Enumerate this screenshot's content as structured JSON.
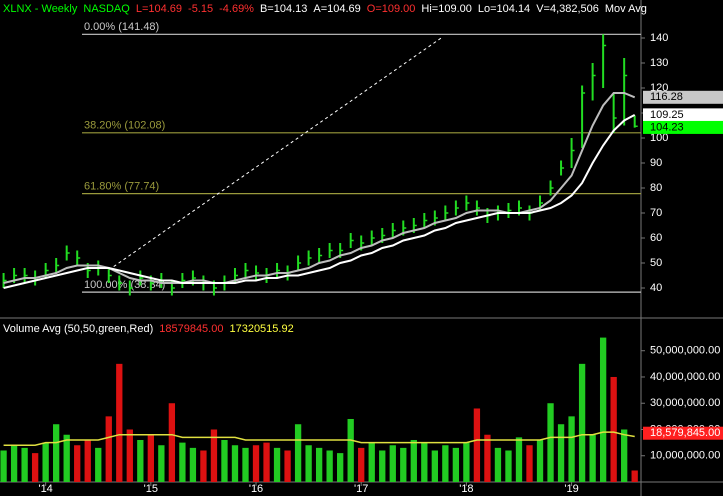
{
  "chart_data": [
    {
      "type": "ohlc",
      "header": [
        {
          "text": "XLNX - Weekly",
          "color": "#00ff00"
        },
        {
          "text": "NASDAQ",
          "color": "#00ff00"
        },
        {
          "text": "L=104.69",
          "color": "#ff3030"
        },
        {
          "text": "-5.15",
          "color": "#ff3030"
        },
        {
          "text": "-4.69%",
          "color": "#ff3030"
        },
        {
          "text": "B=104.13",
          "color": "#ffffff"
        },
        {
          "text": "A=104.69",
          "color": "#ffffff"
        },
        {
          "text": "O=109.00",
          "color": "#ff3030"
        },
        {
          "text": "Hi=109.00",
          "color": "#ffffff"
        },
        {
          "text": "Lo=104.14",
          "color": "#ffffff"
        },
        {
          "text": "V=4,382,506",
          "color": "#ffffff"
        },
        {
          "text": "Mov Avg",
          "color": "#ffffff"
        }
      ],
      "x": [
        2013.6,
        2013.7,
        2013.8,
        2013.9,
        2014.0,
        2014.1,
        2014.2,
        2014.3,
        2014.4,
        2014.5,
        2014.6,
        2014.7,
        2014.8,
        2014.9,
        2015.0,
        2015.1,
        2015.2,
        2015.3,
        2015.4,
        2015.5,
        2015.6,
        2015.7,
        2015.8,
        2015.9,
        2016.0,
        2016.1,
        2016.2,
        2016.3,
        2016.4,
        2016.5,
        2016.6,
        2016.7,
        2016.8,
        2016.9,
        2017.0,
        2017.1,
        2017.2,
        2017.3,
        2017.4,
        2017.5,
        2017.6,
        2017.7,
        2017.8,
        2017.9,
        2018.0,
        2018.1,
        2018.2,
        2018.3,
        2018.4,
        2018.5,
        2018.6,
        2018.7,
        2018.8,
        2018.9,
        2019.0,
        2019.1,
        2019.2,
        2019.3,
        2019.4,
        2019.5,
        2019.6
      ],
      "high": [
        46,
        48,
        48,
        47,
        50,
        52,
        57,
        55,
        50,
        51,
        48,
        45,
        43,
        47,
        45,
        46,
        43,
        46,
        47,
        45,
        43,
        45,
        48,
        50,
        49,
        48,
        50,
        49,
        53,
        55,
        56,
        58,
        58,
        62,
        61,
        63,
        64,
        66,
        67,
        68,
        70,
        71,
        73,
        75,
        77,
        75,
        72,
        73,
        74,
        75,
        73,
        77,
        83,
        91,
        100,
        121,
        130,
        141.48,
        118,
        132,
        109
      ],
      "low": [
        40,
        42,
        42,
        41,
        44,
        46,
        51,
        49,
        44,
        45,
        42,
        39,
        37,
        41,
        39,
        40,
        37,
        40,
        41,
        39,
        37,
        39,
        42,
        44,
        43,
        42,
        44,
        43,
        47,
        49,
        50,
        52,
        52,
        56,
        55,
        57,
        58,
        60,
        61,
        62,
        64,
        65,
        67,
        69,
        71,
        69,
        66,
        67,
        68,
        69,
        67,
        71,
        77,
        85,
        88,
        96,
        115,
        120,
        102,
        105,
        104.14
      ],
      "close": [
        43,
        45,
        45,
        44,
        47,
        49,
        54,
        52,
        47,
        48,
        45,
        42,
        40,
        44,
        42,
        43,
        40,
        43,
        44,
        42,
        40,
        42,
        45,
        47,
        46,
        45,
        47,
        46,
        50,
        52,
        53,
        55,
        55,
        59,
        58,
        60,
        61,
        63,
        64,
        65,
        67,
        68,
        70,
        72,
        74,
        72,
        69,
        70,
        71,
        72,
        70,
        74,
        80,
        88,
        95,
        118,
        125,
        137,
        108,
        125,
        104.69
      ],
      "color": "#22dd22",
      "series": [
        {
          "color": "#bdbdbd",
          "values": [
            42,
            43,
            44,
            44,
            45,
            46,
            48,
            49,
            49,
            49,
            48,
            46,
            44,
            43,
            43,
            42,
            42,
            42,
            43,
            43,
            42,
            42,
            43,
            44,
            45,
            45,
            46,
            46,
            47,
            48,
            50,
            51,
            53,
            54,
            56,
            57,
            59,
            60,
            62,
            63,
            64,
            66,
            67,
            68,
            70,
            71,
            71,
            71,
            70,
            70,
            71,
            72,
            75,
            80,
            85,
            95,
            105,
            113,
            118,
            118,
            116.28
          ]
        },
        {
          "color": "#ffffff",
          "values": [
            40,
            41,
            42,
            43,
            44,
            45,
            46,
            47,
            48,
            48,
            48,
            47,
            46,
            45,
            44,
            43,
            43,
            42,
            42,
            42,
            42,
            42,
            42,
            43,
            43,
            44,
            44,
            45,
            45,
            46,
            47,
            48,
            50,
            51,
            53,
            54,
            56,
            57,
            59,
            60,
            61,
            63,
            64,
            66,
            67,
            68,
            69,
            70,
            70,
            70,
            70,
            71,
            72,
            74,
            77,
            82,
            90,
            97,
            103,
            107,
            109.25
          ]
        }
      ],
      "fib_levels": [
        {
          "label": "0.00% (141.48)",
          "value": 141.48,
          "color": "#c8c8c8"
        },
        {
          "label": "38.20% (102.08)",
          "value": 102.08,
          "color": "#9a9a3c"
        },
        {
          "label": "61.80% (77.74)",
          "value": 77.74,
          "color": "#9a9a3c"
        },
        {
          "label": "100.00% (38.34)",
          "value": 38.34,
          "color": "#c8c8c8"
        }
      ],
      "trendline": {
        "x": [
          2014.6,
          2017.76
        ],
        "y": [
          47.2,
          140
        ],
        "color": "#ffffff",
        "dash": true
      },
      "value_tags": [
        {
          "value": 116.28,
          "color": "#c8c8c8"
        },
        {
          "value": 109.25,
          "color": "#ffffff"
        },
        {
          "value": 104.23,
          "color": "#00ff00"
        }
      ],
      "xlim": [
        2013.566,
        2019.66
      ],
      "ylim": [
        28,
        155.2
      ],
      "yticks": [
        40,
        50,
        60,
        70,
        80,
        90,
        100,
        110,
        120,
        130,
        140
      ]
    },
    {
      "type": "volume",
      "header": [
        {
          "text": "Volume Avg (50,50,green,Red)",
          "color": "#ffffff"
        },
        {
          "text": "18579845.00",
          "color": "#ff3030"
        },
        {
          "text": "17320515.92",
          "color": "#ffff40"
        }
      ],
      "x": [
        2013.6,
        2013.7,
        2013.8,
        2013.9,
        2014.0,
        2014.1,
        2014.2,
        2014.3,
        2014.4,
        2014.5,
        2014.6,
        2014.7,
        2014.8,
        2014.9,
        2015.0,
        2015.1,
        2015.2,
        2015.3,
        2015.4,
        2015.5,
        2015.6,
        2015.7,
        2015.8,
        2015.9,
        2016.0,
        2016.1,
        2016.2,
        2016.3,
        2016.4,
        2016.5,
        2016.6,
        2016.7,
        2016.8,
        2016.9,
        2017.0,
        2017.1,
        2017.2,
        2017.3,
        2017.4,
        2017.5,
        2017.6,
        2017.7,
        2017.8,
        2017.9,
        2018.0,
        2018.1,
        2018.2,
        2018.3,
        2018.4,
        2018.5,
        2018.6,
        2018.7,
        2018.8,
        2018.9,
        2019.0,
        2019.1,
        2019.2,
        2019.3,
        2019.4,
        2019.5,
        2019.6
      ],
      "values": [
        12000000,
        14000000,
        13000000,
        11000000,
        15000000,
        22000000,
        18000000,
        14000000,
        16000000,
        13000000,
        25000000,
        45000000,
        20000000,
        16000000,
        18000000,
        14000000,
        30000000,
        15000000,
        13000000,
        12000000,
        20000000,
        16000000,
        14000000,
        13000000,
        14000000,
        15000000,
        13000000,
        12000000,
        22000000,
        14000000,
        13000000,
        12000000,
        11000000,
        24000000,
        13000000,
        15000000,
        12000000,
        14000000,
        13000000,
        16000000,
        15000000,
        12000000,
        14000000,
        13000000,
        15000000,
        28000000,
        18000000,
        13000000,
        12000000,
        17000000,
        14000000,
        16000000,
        30000000,
        22000000,
        25000000,
        45000000,
        18000000,
        55000000,
        40000000,
        20000000,
        4382506
      ],
      "up_color": "#22cc22",
      "down_color": "#dd1111",
      "avg_series": {
        "color": "#e0e040",
        "values": [
          14000000,
          14000000,
          14000000,
          14000000,
          15000000,
          15000000,
          16000000,
          16000000,
          16000000,
          16000000,
          17000000,
          18000000,
          18000000,
          18000000,
          18000000,
          18000000,
          18000000,
          17000000,
          17000000,
          17000000,
          17000000,
          17000000,
          17000000,
          16000000,
          16000000,
          16000000,
          16000000,
          16000000,
          16000000,
          16000000,
          16000000,
          16000000,
          16000000,
          16000000,
          15000000,
          15000000,
          15000000,
          15000000,
          15000000,
          15000000,
          15000000,
          15000000,
          15000000,
          15000000,
          15000000,
          16000000,
          16000000,
          16000000,
          16000000,
          16000000,
          16000000,
          16000000,
          17000000,
          17000000,
          17000000,
          18000000,
          18000000,
          19000000,
          19000000,
          18000000,
          17320515.92
        ]
      },
      "value_tags": [
        {
          "value": 18579845,
          "label": "18,579,845.00",
          "color": "#ff2020"
        }
      ],
      "xlim": [
        2013.566,
        2019.66
      ],
      "ylim": [
        0,
        61700000
      ],
      "yticks": [
        {
          "value": 10000000,
          "label": "10,000,000.00"
        },
        {
          "value": 20000000,
          "label": "20,000,000.00"
        },
        {
          "value": 30000000,
          "label": "30,000,000.00"
        },
        {
          "value": 40000000,
          "label": "40,000,000.00"
        },
        {
          "value": 50000000,
          "label": "50,000,000.00"
        }
      ],
      "xticks": [
        {
          "value": 2014,
          "label": "'14"
        },
        {
          "value": 2015,
          "label": "'15"
        },
        {
          "value": 2016,
          "label": "'16"
        },
        {
          "value": 2017,
          "label": "'17"
        },
        {
          "value": 2018,
          "label": "'18"
        },
        {
          "value": 2019,
          "label": "'19"
        }
      ]
    }
  ]
}
